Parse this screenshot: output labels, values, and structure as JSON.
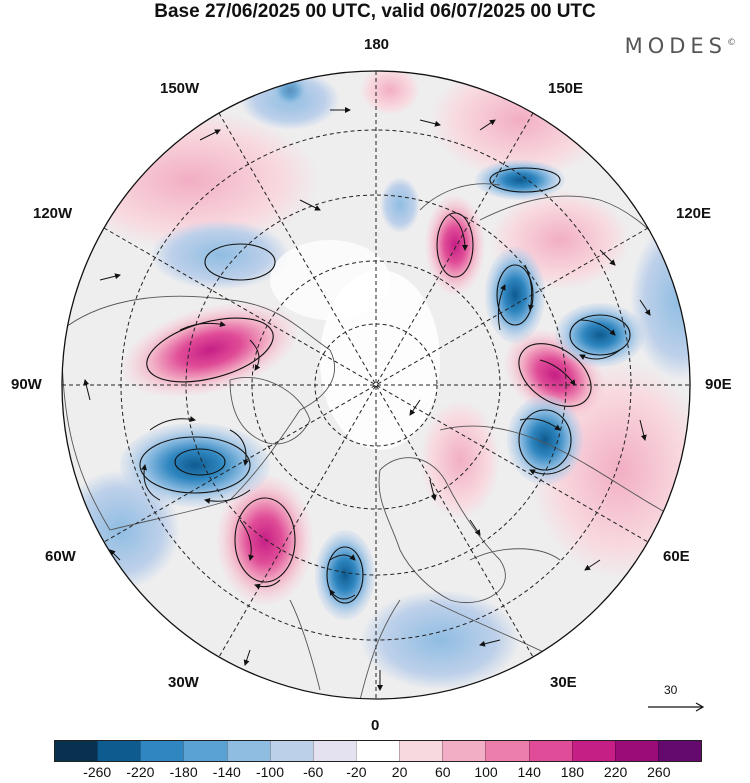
{
  "header": {
    "title": "Base 27/06/2025 00 UTC, valid 06/07/2025 00 UTC",
    "brand": "MODES",
    "brand_mark": "©"
  },
  "map": {
    "projection": "north-polar-stereographic",
    "longitude_labels": {
      "top": "180",
      "top_left": "150W",
      "top_right": "150E",
      "upper_left": "120W",
      "upper_right": "120E",
      "left": "90W",
      "right": "90E",
      "lower_left": "60W",
      "lower_right": "60E",
      "bottom_left": "30W",
      "bottom_right": "30E",
      "bottom": "0"
    },
    "reference_vector": "30",
    "colors": {
      "positive_accent": "#d4217a",
      "negative_accent": "#1e6fa9",
      "land_outline": "#555555"
    }
  },
  "colorbar": {
    "levels": [
      "-260",
      "-220",
      "-180",
      "-140",
      "-100",
      "-60",
      "-20",
      "20",
      "60",
      "100",
      "140",
      "180",
      "220",
      "260"
    ],
    "colors": [
      "#08314f",
      "#0e5b90",
      "#2f86c0",
      "#5aa2d3",
      "#8fbde2",
      "#bdd0ea",
      "#e4e1f0",
      "#ffffff",
      "#f8d9df",
      "#f2aec4",
      "#ec7eac",
      "#e04c97",
      "#c51f85",
      "#9b0c78",
      "#640a6f"
    ]
  }
}
